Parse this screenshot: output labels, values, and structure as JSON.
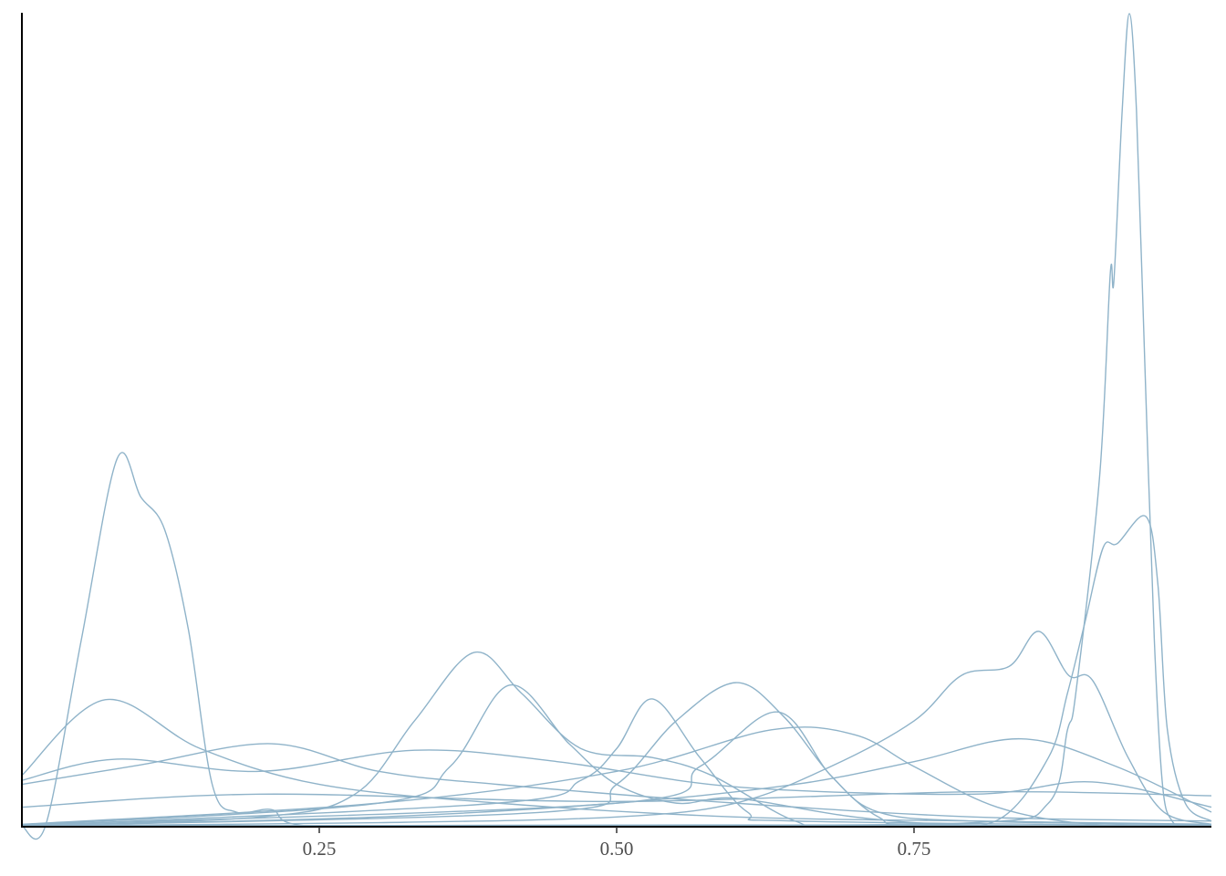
{
  "chart_data": {
    "type": "density",
    "color": "#8fb3c9",
    "xlim": [
      0,
      1
    ],
    "ylim": [
      0,
      100
    ],
    "xticks": [
      {
        "value": 0.25,
        "label": "0.25"
      },
      {
        "value": 0.5,
        "label": "0.50"
      },
      {
        "value": 0.75,
        "label": "0.75"
      }
    ],
    "series": [
      {
        "x": [
          0,
          0.5,
          0.8,
          0.863,
          0.879,
          0.886,
          0.906,
          0.915,
          0.918,
          0.925,
          0.931,
          0.937,
          0.944,
          0.952,
          0.959,
          0.967,
          0.978,
          1.0
        ],
        "values": [
          0.1,
          0.2,
          0.5,
          2.9,
          11.9,
          16.4,
          43,
          68,
          67,
          88,
          99.9,
          88,
          57,
          23,
          5,
          0.7,
          0.2,
          0.1
        ]
      },
      {
        "x": [
          0,
          0.02,
          0.05,
          0.08,
          0.1,
          0.12,
          0.14,
          0.16,
          0.18,
          0.21,
          0.24,
          0.4,
          1.0
        ],
        "values": [
          0.1,
          0.2,
          23,
          45.2,
          40.5,
          36.5,
          24.2,
          5.2,
          1.8,
          2.1,
          0.1,
          0.1,
          0.1
        ]
      },
      {
        "x": [
          0,
          0.6,
          0.75,
          0.82,
          0.863,
          0.879,
          0.894,
          0.909,
          0.921,
          0.945,
          0.955,
          0.963,
          0.978,
          1.0
        ],
        "values": [
          0.1,
          0.2,
          0.3,
          0.8,
          8.5,
          16.4,
          25.3,
          34.3,
          34.8,
          38.1,
          29.8,
          11.9,
          2.9,
          0.7
        ]
      },
      {
        "x": [
          0,
          0.3,
          0.5,
          0.6,
          0.68,
          0.75,
          0.79,
          0.83,
          0.855,
          0.88,
          0.9,
          0.93,
          0.96,
          1.0
        ],
        "values": [
          0.1,
          0.5,
          1.2,
          2.9,
          7.4,
          13,
          18.6,
          19.7,
          24,
          18.6,
          18,
          8.5,
          1.8,
          0.3
        ]
      },
      {
        "x": [
          0,
          0.2,
          0.28,
          0.33,
          0.38,
          0.42,
          0.47,
          0.53,
          0.58,
          0.65,
          0.7,
          1.0
        ],
        "values": [
          0.1,
          1.2,
          4,
          13,
          21.4,
          16.4,
          9.6,
          8.5,
          6.3,
          0.7,
          0.1,
          0.1
        ]
      },
      {
        "x": [
          0,
          0.3,
          0.36,
          0.41,
          0.46,
          0.5,
          0.55,
          0.6,
          0.7,
          0.8,
          1.0
        ],
        "values": [
          0.2,
          2.9,
          7.4,
          17.4,
          10.2,
          5.2,
          2.9,
          3.5,
          1.2,
          0.2,
          0.1
        ]
      },
      {
        "x": [
          0,
          0.4,
          0.47,
          0.5,
          0.53,
          0.57,
          0.61,
          0.65,
          1.0
        ],
        "values": [
          0.1,
          2.9,
          5.7,
          9.6,
          15.7,
          8.5,
          1.8,
          0.7,
          0.1
        ]
      },
      {
        "x": [
          0,
          0.44,
          0.5,
          0.55,
          0.6,
          0.64,
          0.68,
          0.72,
          0.76,
          1.0
        ],
        "values": [
          0.1,
          1.8,
          5.2,
          13,
          17.7,
          13.6,
          6.3,
          1.2,
          0.2,
          0.1
        ]
      },
      {
        "x": [
          0,
          0.5,
          0.57,
          0.635,
          0.68,
          0.72,
          0.8,
          1.0
        ],
        "values": [
          0.2,
          2.9,
          7.4,
          14.1,
          6.3,
          1.8,
          0.7,
          0.2
        ]
      },
      {
        "x": [
          0,
          0.07,
          0.15,
          0.25,
          0.4,
          0.6,
          0.8,
          1.0
        ],
        "values": [
          6.3,
          15.6,
          9.6,
          5.2,
          2.9,
          1.2,
          0.7,
          0.3
        ]
      },
      {
        "x": [
          0,
          0.1,
          0.21,
          0.3,
          0.4,
          0.6,
          0.8,
          1.0
        ],
        "values": [
          5.2,
          7.6,
          10.2,
          6.8,
          5.2,
          2.9,
          1.2,
          0.7
        ]
      },
      {
        "x": [
          0,
          0.3,
          0.5,
          0.65,
          0.75,
          0.84,
          0.92,
          1.0
        ],
        "values": [
          0.1,
          1.2,
          2.9,
          5.2,
          8,
          10.8,
          7.4,
          1.8
        ]
      },
      {
        "x": [
          0,
          0.3,
          0.5,
          0.63,
          0.7,
          0.75,
          0.82,
          0.9,
          1.0
        ],
        "values": [
          0.3,
          2.9,
          6.8,
          11.9,
          11.3,
          7.4,
          2.4,
          0.3,
          0.1
        ]
      },
      {
        "x": [
          0,
          0.08,
          0.2,
          0.33,
          0.45,
          0.6,
          0.8,
          0.9,
          1.0
        ],
        "values": [
          5.7,
          8.3,
          6.8,
          9.4,
          8,
          4.9,
          4,
          5.5,
          2.4
        ]
      },
      {
        "x": [
          0,
          0.2,
          0.5,
          0.8,
          1.0
        ],
        "values": [
          2.4,
          4,
          3.1,
          4.3,
          3.8
        ]
      }
    ]
  }
}
